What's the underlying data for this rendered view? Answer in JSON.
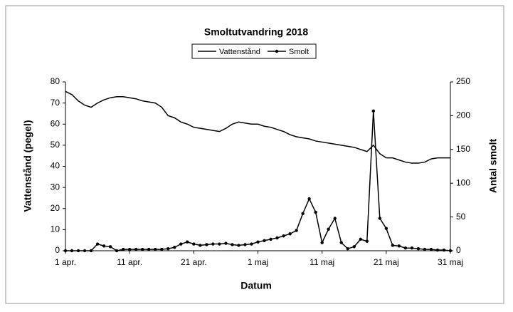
{
  "chart_data": {
    "type": "line",
    "title": "Smoltutvandring 2018",
    "x_label": "Datum",
    "y_label": "Vattenstånd (pegel)",
    "y2_label": "Antal smolt",
    "legend": "top",
    "categories": [
      "1 apr.",
      null,
      null,
      null,
      null,
      null,
      null,
      null,
      null,
      null,
      "11 apr.",
      null,
      null,
      null,
      null,
      null,
      null,
      null,
      null,
      null,
      "21 apr.",
      null,
      null,
      null,
      null,
      null,
      null,
      null,
      null,
      null,
      "1 maj",
      null,
      null,
      null,
      null,
      null,
      null,
      null,
      null,
      null,
      "11 maj",
      null,
      null,
      null,
      null,
      null,
      null,
      null,
      null,
      null,
      "21 maj",
      null,
      null,
      null,
      null,
      null,
      null,
      null,
      null,
      null,
      "31 maj"
    ],
    "ylim": [
      0,
      80
    ],
    "yticks": [
      0,
      10,
      20,
      30,
      40,
      50,
      60,
      70,
      80
    ],
    "y2lim": [
      0,
      250
    ],
    "y2ticks": [
      0,
      50,
      100,
      150,
      200,
      250
    ],
    "series": [
      {
        "name": "Vattenstånd",
        "color": "#000000",
        "marker": false,
        "values": [
          75.5,
          74,
          71,
          69,
          68,
          70,
          71.5,
          72.5,
          73,
          73,
          72.5,
          72,
          71,
          70.5,
          70,
          68,
          64,
          63,
          61,
          60,
          58.5,
          58,
          57.5,
          57,
          56.5,
          58,
          60,
          61,
          60.5,
          60,
          60,
          59,
          58.5,
          57.5,
          56.5,
          55,
          54,
          53.5,
          53,
          52,
          51.5,
          51,
          50.5,
          50,
          49.5,
          49,
          48,
          47,
          50,
          46,
          44,
          44,
          43,
          42,
          41.5,
          41.5,
          42,
          43.5,
          44,
          44,
          44
        ]
      },
      {
        "name": "Smolt",
        "color": "#000000",
        "marker": true,
        "axis": "y2",
        "values": [
          0,
          0,
          0,
          0,
          0,
          10,
          7,
          6,
          0,
          2,
          2,
          2,
          2,
          2,
          2,
          2,
          3,
          5,
          10,
          13,
          10,
          8,
          9,
          10,
          10,
          11,
          9,
          8,
          9,
          10,
          13,
          15,
          17,
          19,
          22,
          25,
          30,
          55,
          77,
          57,
          12,
          32,
          48,
          12,
          3,
          6,
          17,
          14,
          207,
          48,
          33,
          8,
          7,
          4,
          4,
          3,
          2,
          2,
          1,
          1,
          0
        ]
      }
    ]
  }
}
